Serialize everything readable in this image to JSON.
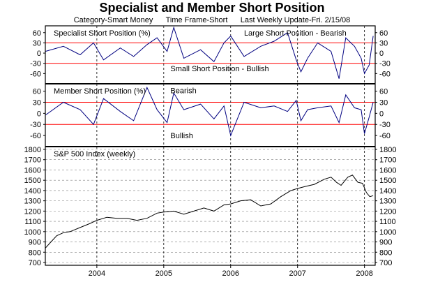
{
  "title": "Specialist and Member Short Position",
  "subtitle": {
    "category": "Category-Smart Money",
    "timeframe": "Time Frame-Short",
    "update": "Last Weekly Update-Fri. 2/15/08"
  },
  "colors": {
    "series": "#000080",
    "threshold": "#ff0000",
    "grid": "#808080",
    "sp500": "#000000"
  },
  "chart_data": [
    {
      "type": "line",
      "title": "Specialist Short Position (%)",
      "ylim": [
        -90,
        80
      ],
      "yticks": [
        60,
        30,
        0,
        -30,
        -60
      ],
      "thresholds": [
        30,
        -30
      ],
      "annotations": [
        {
          "text": "Large Short Position - Bearish",
          "x": 2006.2,
          "y": 60
        },
        {
          "text": "Small Short Position - Bullish",
          "x": 2005.1,
          "y": -45
        }
      ],
      "series": [
        {
          "x": [
            2003.23,
            2003.5,
            2003.75,
            2003.95,
            2004.1,
            2004.35,
            2004.55,
            2004.75,
            2004.9,
            2005.05,
            2005.15,
            2005.3,
            2005.55,
            2005.75,
            2005.9,
            2006.0,
            2006.2,
            2006.45,
            2006.65,
            2006.85,
            2006.98,
            2007.05,
            2007.15,
            2007.3,
            2007.5,
            2007.62,
            2007.72,
            2007.85,
            2007.95,
            2008.0,
            2008.07,
            2008.13
          ],
          "values": [
            5,
            20,
            -5,
            30,
            -20,
            15,
            -10,
            25,
            45,
            5,
            75,
            -15,
            10,
            -25,
            30,
            50,
            -10,
            20,
            35,
            60,
            -20,
            -55,
            -15,
            30,
            5,
            -75,
            45,
            20,
            -15,
            -60,
            -35,
            50
          ]
        }
      ]
    },
    {
      "type": "line",
      "title": "Member Short Position (%)",
      "ylim": [
        -90,
        80
      ],
      "yticks": [
        60,
        30,
        0,
        -30,
        -60
      ],
      "thresholds": [
        30,
        -30
      ],
      "annotations": [
        {
          "text": "Bearish",
          "x": 2005.1,
          "y": 62
        },
        {
          "text": "Bullish",
          "x": 2005.1,
          "y": -60
        }
      ],
      "series": [
        {
          "x": [
            2003.23,
            2003.5,
            2003.75,
            2003.95,
            2004.1,
            2004.35,
            2004.55,
            2004.75,
            2004.9,
            2005.05,
            2005.15,
            2005.3,
            2005.55,
            2005.75,
            2005.9,
            2006.0,
            2006.2,
            2006.45,
            2006.65,
            2006.85,
            2006.98,
            2007.05,
            2007.15,
            2007.3,
            2007.5,
            2007.62,
            2007.72,
            2007.85,
            2007.95,
            2008.0,
            2008.07,
            2008.13
          ],
          "values": [
            -5,
            30,
            10,
            -30,
            40,
            5,
            -20,
            70,
            10,
            -25,
            55,
            10,
            25,
            -15,
            20,
            -60,
            30,
            15,
            20,
            5,
            35,
            -20,
            10,
            15,
            20,
            -25,
            50,
            15,
            10,
            -55,
            -10,
            30
          ]
        }
      ]
    },
    {
      "type": "line",
      "title": "S&P 500 Index (weekly)",
      "ylim": [
        700,
        1800
      ],
      "yticks": [
        1800,
        1700,
        1600,
        1500,
        1400,
        1300,
        1200,
        1100,
        1000,
        900,
        800,
        700
      ],
      "xlim": [
        2003.23,
        2008.16
      ],
      "xticks": [
        "2004",
        "2005",
        "2006",
        "2007",
        "2008"
      ],
      "series": [
        {
          "x": [
            2003.23,
            2003.3,
            2003.4,
            2003.5,
            2003.6,
            2003.75,
            2003.9,
            2004.0,
            2004.15,
            2004.3,
            2004.45,
            2004.6,
            2004.75,
            2004.9,
            2005.0,
            2005.15,
            2005.3,
            2005.45,
            2005.6,
            2005.75,
            2005.9,
            2006.0,
            2006.15,
            2006.3,
            2006.45,
            2006.6,
            2006.75,
            2006.9,
            2007.0,
            2007.12,
            2007.25,
            2007.4,
            2007.5,
            2007.58,
            2007.65,
            2007.75,
            2007.82,
            2007.9,
            2007.97,
            2008.03,
            2008.08,
            2008.13
          ],
          "values": [
            840,
            890,
            960,
            990,
            1000,
            1040,
            1080,
            1110,
            1140,
            1130,
            1130,
            1110,
            1130,
            1180,
            1190,
            1200,
            1170,
            1200,
            1230,
            1200,
            1260,
            1270,
            1300,
            1310,
            1250,
            1270,
            1340,
            1400,
            1420,
            1440,
            1460,
            1510,
            1530,
            1480,
            1450,
            1530,
            1550,
            1480,
            1470,
            1380,
            1340,
            1350
          ]
        }
      ]
    }
  ]
}
